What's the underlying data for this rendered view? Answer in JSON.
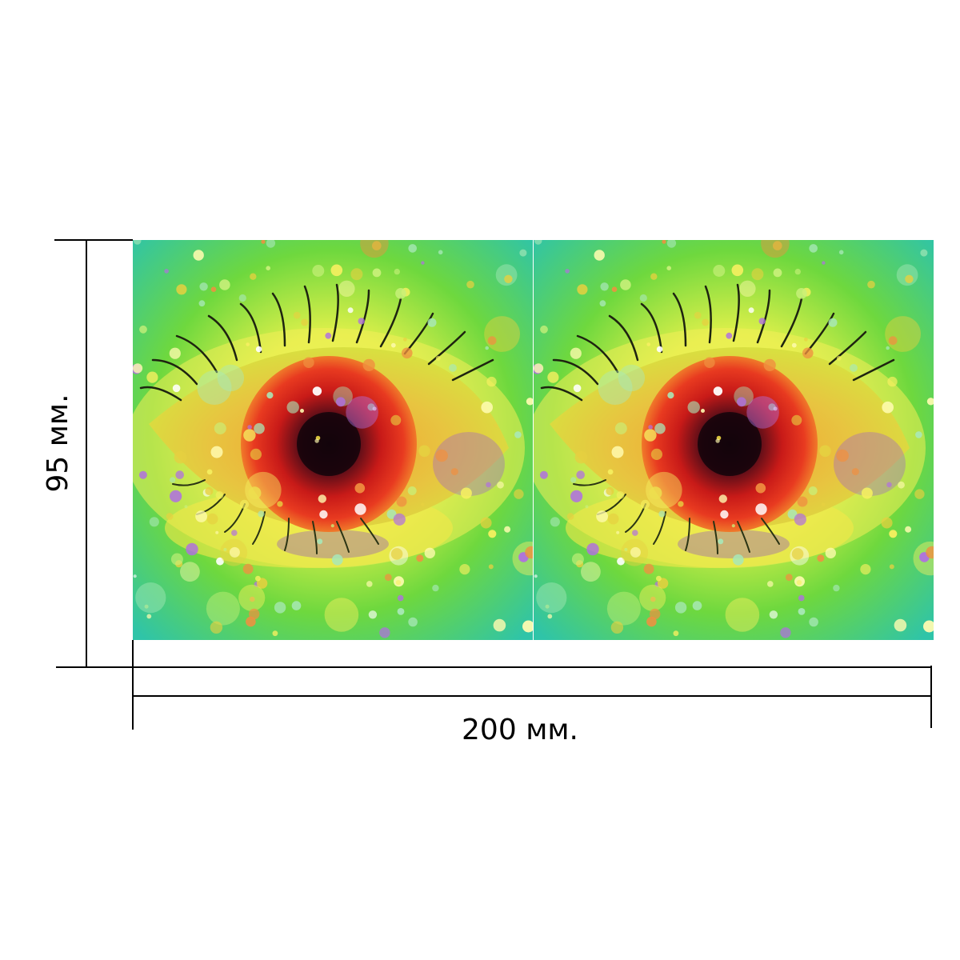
{
  "dimensions": {
    "height_label": "95 мм.",
    "width_label": "200 мм."
  },
  "artwork": {
    "panels": [
      {
        "icon": "eye-icon"
      },
      {
        "icon": "eye-icon"
      }
    ],
    "colors": {
      "background_light": "#e8f05a",
      "background_green": "#3fcf4a",
      "background_teal": "#3fc9b8",
      "iris_red": "#d8201a",
      "iris_dark": "#3a0a14",
      "lid_orange": "#e8902a",
      "violet": "#8a4ac8"
    }
  }
}
